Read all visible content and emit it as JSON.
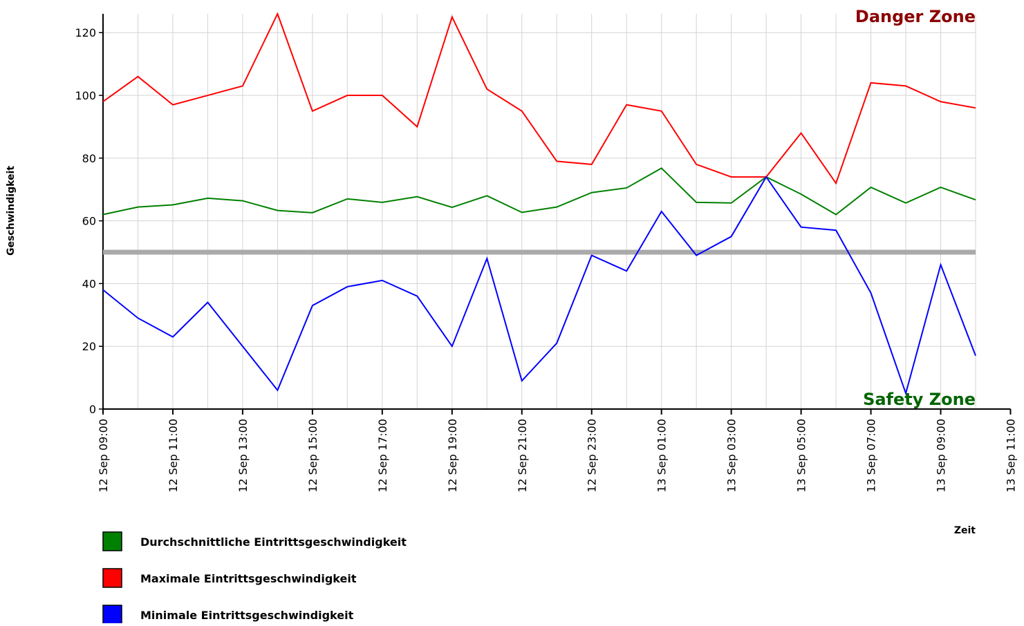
{
  "chart_data": {
    "type": "line",
    "x_label": "Zeit",
    "y_label": "Geschwindigkeit",
    "danger_label": "Danger Zone",
    "safety_label": "Safety Zone",
    "categories": [
      "12 Sep 09:00",
      null,
      "12 Sep 11:00",
      null,
      "12 Sep 13:00",
      null,
      "12 Sep 15:00",
      null,
      "12 Sep 17:00",
      null,
      "12 Sep 19:00",
      null,
      "12 Sep 21:00",
      null,
      "12 Sep 23:00",
      null,
      "13 Sep 01:00",
      null,
      "13 Sep 03:00",
      null,
      "13 Sep 05:00",
      null,
      "13 Sep 07:00",
      null,
      "13 Sep 09:00",
      null
    ],
    "xtick_after": "13 Sep 11:00",
    "series": [
      {
        "name": "Durchschnittliche Eintrittsgeschwindigkeit",
        "color": "#008000",
        "values": [
          62,
          64.4,
          65.1,
          67.2,
          66.4,
          63.3,
          62.6,
          67,
          65.9,
          67.7,
          64.3,
          68,
          62.7,
          64.4,
          69,
          70.5,
          76.8,
          65.9,
          65.7,
          74,
          68.5,
          62,
          70.7,
          65.7,
          70.7,
          66.7
        ]
      },
      {
        "name": "Maximale Eintrittsgeschwindigkeit",
        "color": "#ff0000",
        "values": [
          98,
          106,
          97,
          100,
          103,
          126,
          95,
          100,
          100,
          90,
          125,
          102,
          95,
          79,
          78,
          97,
          95,
          78,
          74,
          74,
          88,
          72,
          104,
          103,
          98,
          96
        ]
      },
      {
        "name": "Minimale Eintrittsgeschwindigkeit",
        "color": "#0000ff",
        "values": [
          38,
          29,
          23,
          34,
          20,
          6,
          33,
          39,
          41,
          36,
          20,
          48,
          9,
          21,
          49,
          44,
          63,
          49,
          55,
          74,
          58,
          57,
          37,
          5,
          46,
          17
        ]
      }
    ],
    "threshold": 50,
    "threshold_color": "#aaaaaa",
    "danger_color": "#8b0000",
    "safety_color": "#006400",
    "ylim": [
      0,
      126
    ],
    "yticks": [
      0,
      20,
      40,
      60,
      80,
      100,
      120
    ],
    "grid": true
  }
}
